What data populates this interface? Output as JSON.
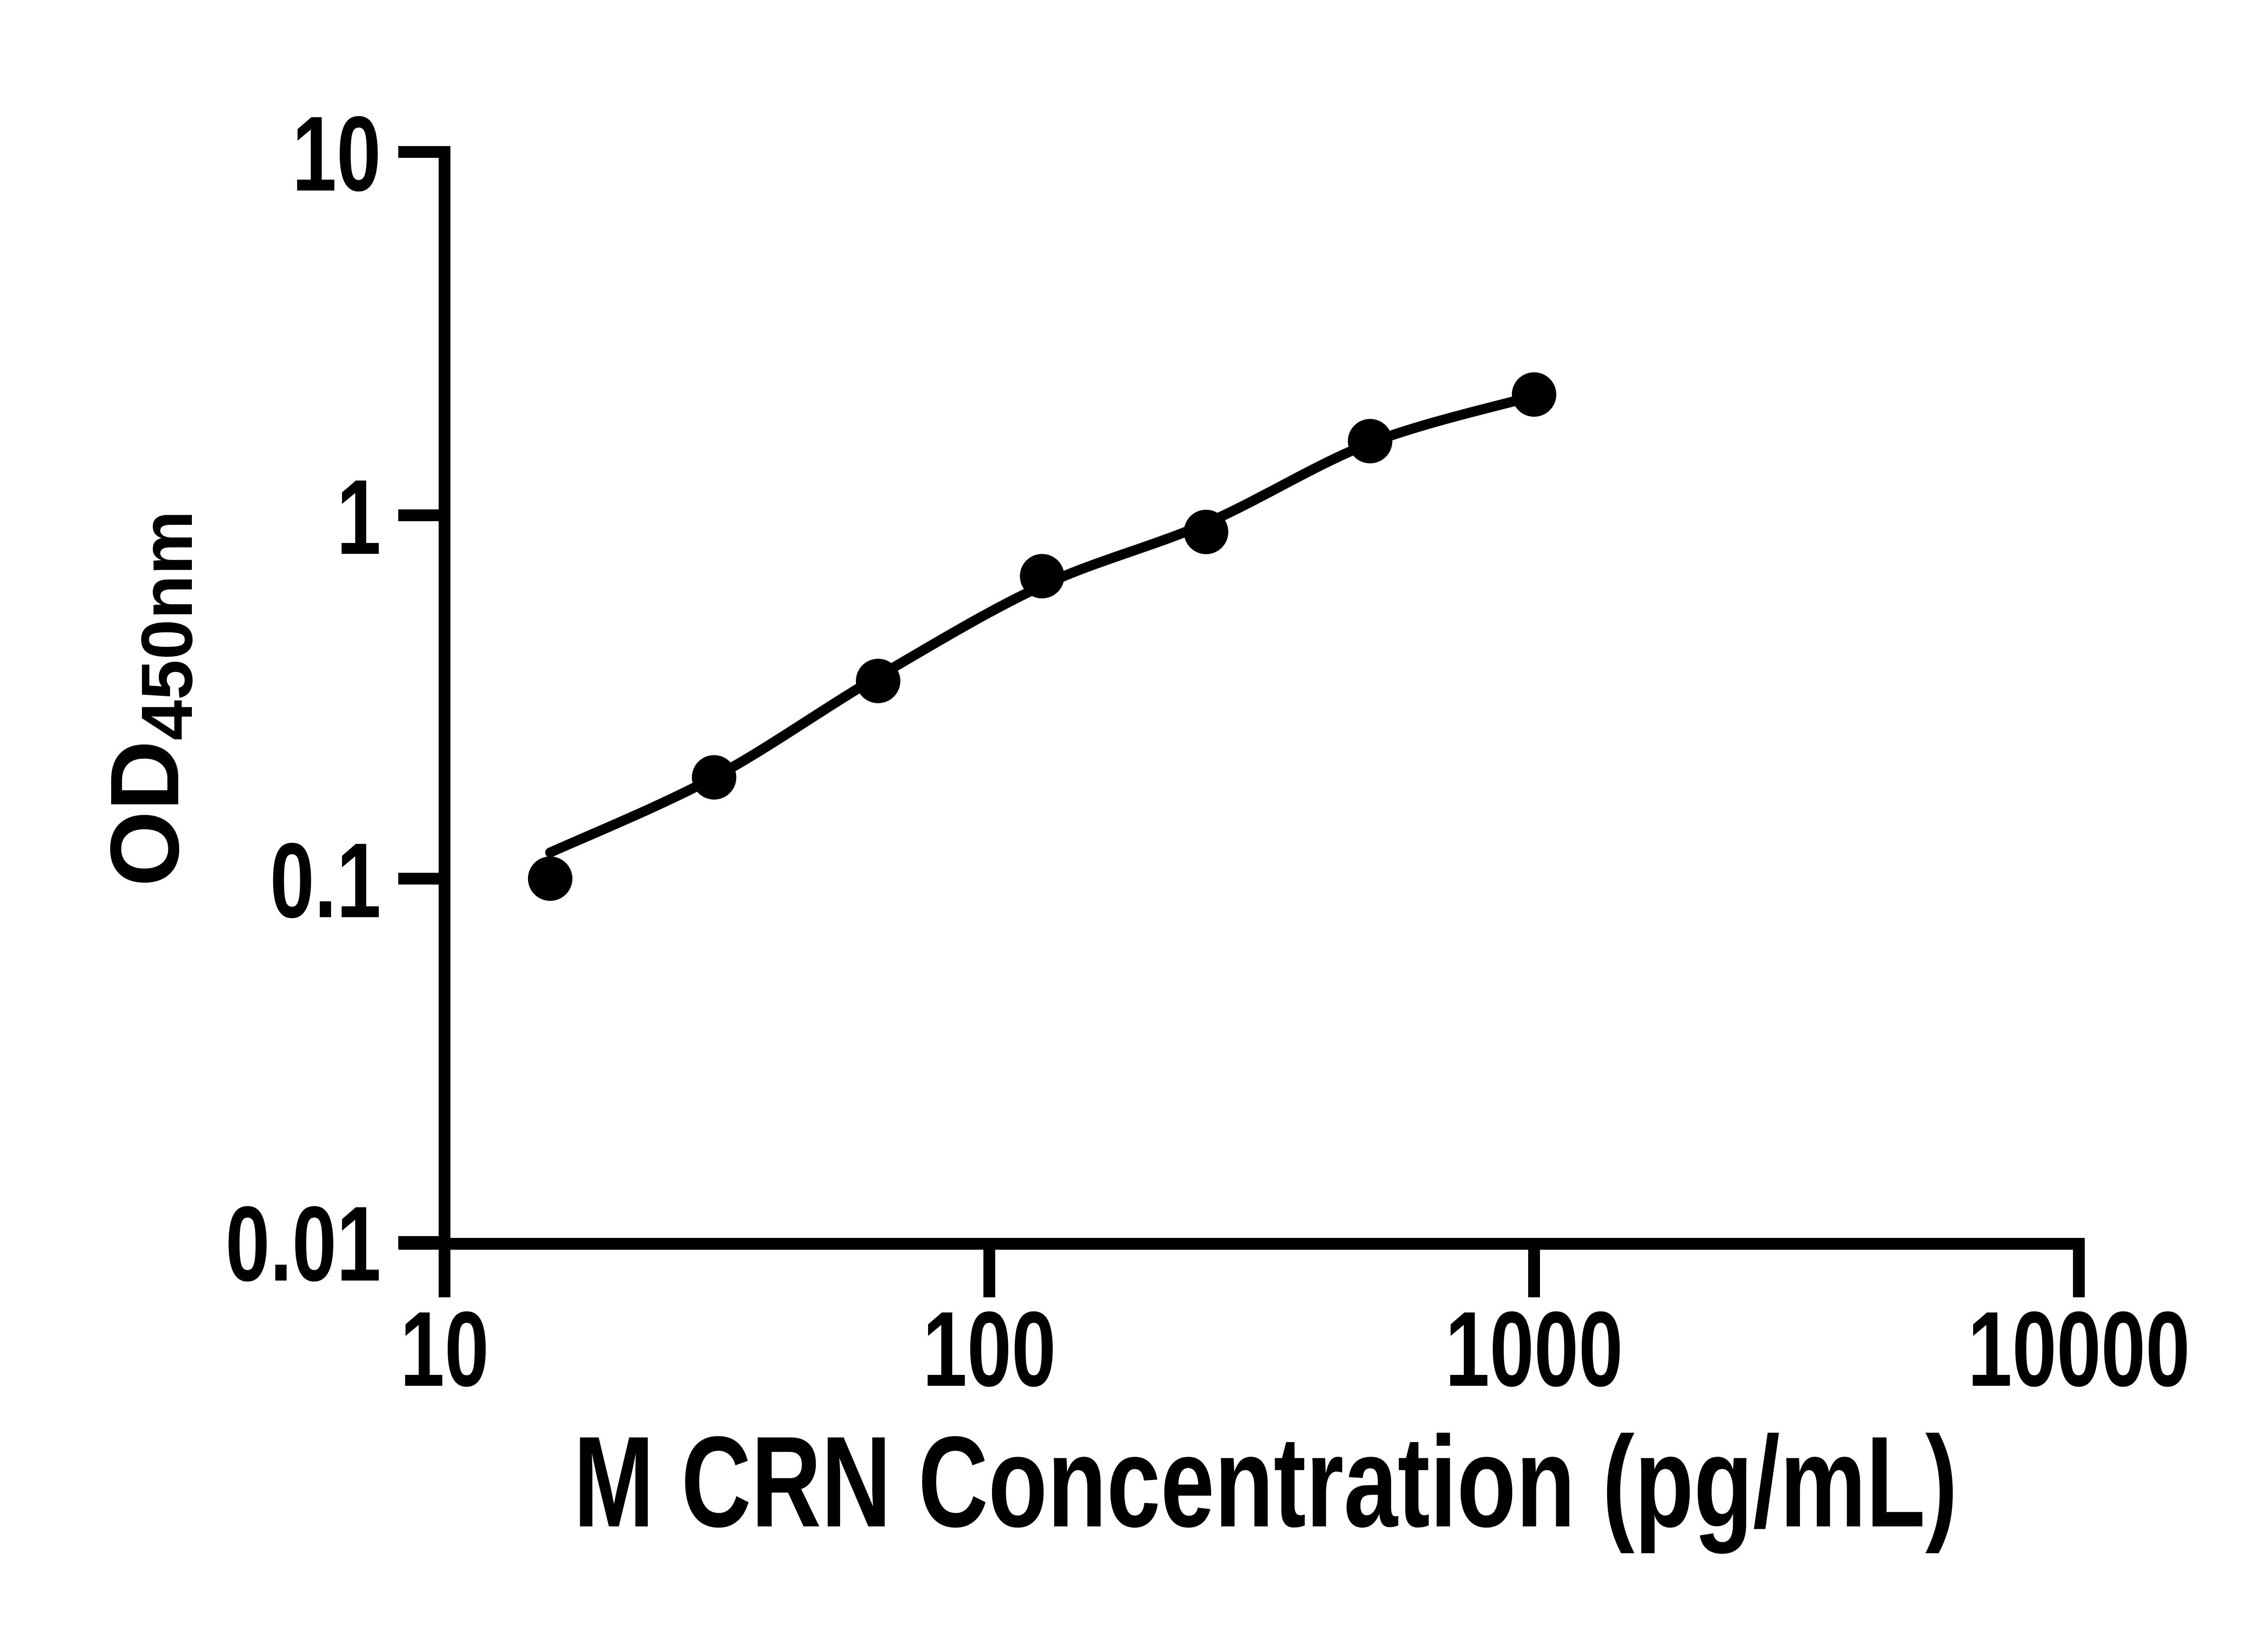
{
  "figure": {
    "background_color": "#ffffff",
    "foreground_color": "#000000"
  },
  "chart_data": {
    "type": "scatter",
    "title": "",
    "xlabel": "M CRN Concentration (pg/mL)",
    "ylabel_main": "OD",
    "ylabel_sub": "450nm",
    "x_scale": "log",
    "y_scale": "log",
    "xlim": [
      10,
      10000
    ],
    "ylim": [
      0.01,
      10
    ],
    "x_ticks": [
      10,
      100,
      1000,
      10000
    ],
    "x_tick_labels": [
      "10",
      "100",
      "1000",
      "10000"
    ],
    "y_ticks": [
      10,
      1,
      0.1,
      0.01
    ],
    "y_tick_labels": [
      "10",
      "1",
      "0.1",
      "0.01"
    ],
    "grid": false,
    "legend": "none",
    "marker_color": "#000000",
    "line_color": "#000000",
    "series": [
      {
        "name": "standard-curve-points",
        "x": [
          15.63,
          31.25,
          62.5,
          125,
          250,
          500,
          1000
        ],
        "y": [
          0.1,
          0.19,
          0.35,
          0.68,
          0.9,
          1.6,
          2.15
        ]
      }
    ],
    "fit_curve": {
      "name": "fitted-standard-curve",
      "x": [
        15.63,
        31.25,
        62.5,
        125,
        250,
        500,
        1000
      ],
      "y": [
        0.118,
        0.19,
        0.36,
        0.64,
        0.95,
        1.58,
        2.13
      ]
    }
  }
}
